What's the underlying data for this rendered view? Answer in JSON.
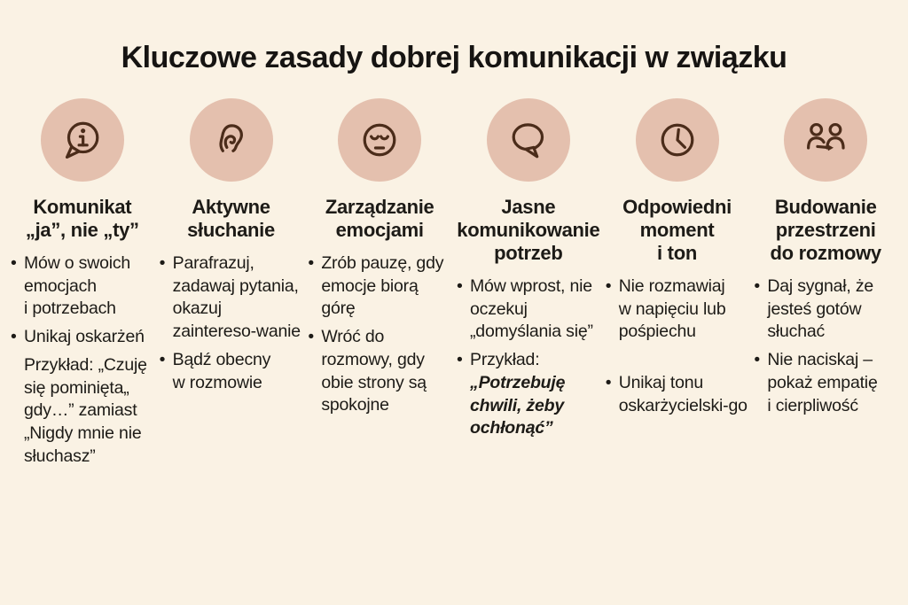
{
  "title": "Kluczowe zasady dobrej komunikacji w związku",
  "bullet_glyph": "•",
  "colors": {
    "background": "#faf2e4",
    "icon_circle": "#e4c0ae",
    "icon_stroke": "#4b2c1a",
    "text": "#1d1b17"
  },
  "columns": [
    {
      "icon": "info-speech-bubble-icon",
      "heading": "Komunikat\n„ja”, nie „ty”",
      "items": [
        {
          "marker": true,
          "text": "Mów o swoich emocjach i potrzebach"
        },
        {
          "marker": true,
          "text": "Unikaj oskarżeń"
        },
        {
          "marker": false,
          "text": "Przykład: „Czuję się pominięta„ gdy…” zamiast „Nigdy mnie nie słuchasz”"
        }
      ]
    },
    {
      "icon": "ear-icon",
      "heading": "Aktywne\nsłuchanie",
      "items": [
        {
          "marker": true,
          "text": "Parafrazuj, zadawaj pytania, okazuj zaintereso-wanie"
        },
        {
          "marker": true,
          "text": "Bądź obecny w rozmowie"
        }
      ]
    },
    {
      "icon": "calm-face-icon",
      "heading": "Zarządzanie\nemocjami",
      "items": [
        {
          "marker": true,
          "text": "Zrób pauzę, gdy emocje biorą górę"
        },
        {
          "marker": true,
          "text": "Wróć do rozmowy, gdy obie strony są spokojne"
        }
      ]
    },
    {
      "icon": "speech-bubble-icon",
      "heading": "Jasne\nkomunikowanie\npotrzeb",
      "items": [
        {
          "marker": true,
          "text": "Mów wprost, nie oczekuj „domyślania się”"
        },
        {
          "marker": true,
          "text": "Przykład:",
          "em": "„Potrzebuję chwili, żeby ochłonąć”"
        }
      ]
    },
    {
      "icon": "clock-icon",
      "heading": "Odpowiedni\nmoment\ni ton",
      "items": [
        {
          "marker": true,
          "text": "Nie rozmawiaj w napięciu lub pośpiechu"
        },
        {
          "marker": true,
          "text": "Unikaj tonu oskarżycielski-go",
          "gap_before": true
        }
      ]
    },
    {
      "icon": "people-conversation-icon",
      "heading": "Budowanie\nprzestrzeni\ndo rozmowy",
      "items": [
        {
          "marker": true,
          "text": "Daj sygnał, że jesteś gotów słuchać"
        },
        {
          "marker": true,
          "text": "Nie naciskaj – pokaż empatię i cierpliwość"
        }
      ]
    }
  ]
}
